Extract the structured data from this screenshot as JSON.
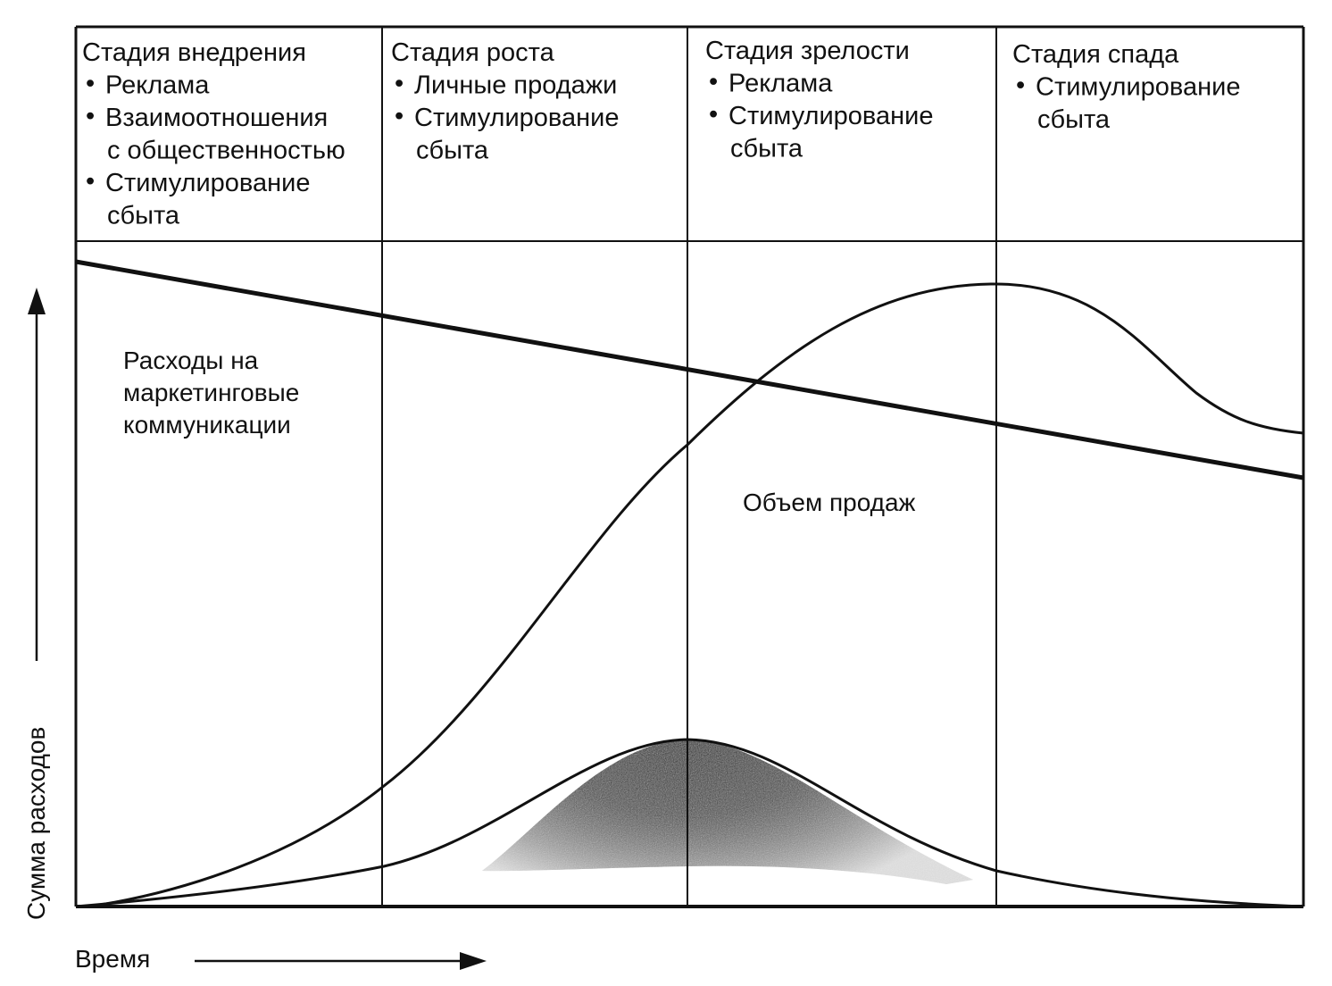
{
  "stages": [
    {
      "title": "Стадия внедрения",
      "items": [
        [
          "Реклама"
        ],
        [
          "Взаимоотношения",
          "с общественностью"
        ],
        [
          "Стимулирование",
          "сбыта"
        ]
      ]
    },
    {
      "title": "Стадия роста",
      "items": [
        [
          "Личные продажи"
        ],
        [
          "Стимулирование",
          "сбыта"
        ]
      ]
    },
    {
      "title": "Стадия зрелости",
      "items": [
        [
          "Реклама"
        ],
        [
          "Стимулирование",
          "сбыта"
        ]
      ]
    },
    {
      "title": "Стадия спада",
      "items": [
        [
          "Стимулирование",
          "сбыта"
        ]
      ]
    }
  ],
  "bullet_char": "•",
  "labels": {
    "expenses_curve": [
      "Расходы на",
      "маркетинговые",
      "коммуникации"
    ],
    "sales_curve": "Объем продаж",
    "y_axis": "Сумма расходов",
    "x_axis": "Время"
  },
  "colors": {
    "ink": "#111111",
    "background": "#ffffff",
    "shading_dark": "#111111",
    "shading_light": "#bdbdbd"
  }
}
